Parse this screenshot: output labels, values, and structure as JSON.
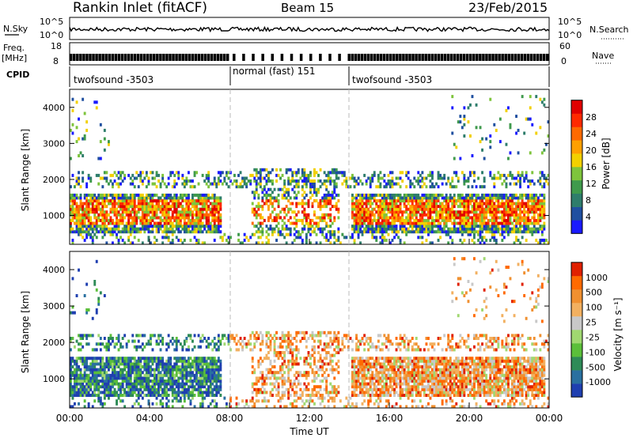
{
  "header": {
    "station": "Rankin Inlet (fitACF)",
    "beam": "Beam 15",
    "date": "23/Feb/2015"
  },
  "strips": {
    "nsky_label": "N.Sky",
    "nsky_ticks": [
      "10^5",
      "10^0"
    ],
    "nsearch_label": "N.Search",
    "nsearch_ticks": [
      "10^5",
      "10^0"
    ],
    "freq_label": "Freq.",
    "freq_unit": "[MHz]",
    "freq_ticks": [
      "18",
      "8"
    ],
    "nave_label": "Nave",
    "nave_ticks": [
      "60",
      "0"
    ],
    "cpid_label": "CPID",
    "cpid_segments": [
      {
        "label": "twofsound -3503",
        "start_hour": 0,
        "end_hour": 8
      },
      {
        "label": "normal (fast) 151",
        "start_hour": 8,
        "end_hour": 14
      },
      {
        "label": "twofsound -3503",
        "start_hour": 14,
        "end_hour": 24
      }
    ]
  },
  "chart_data": [
    {
      "type": "heatmap",
      "name": "power",
      "ylabel": "Slant Range [km]",
      "yticks": [
        "1000",
        "2000",
        "3000",
        "4000"
      ],
      "ylim": [
        200,
        4500
      ],
      "xlim": [
        0,
        24
      ],
      "colorbar_label": "Power [dB]",
      "colorbar_ticks": [
        "28",
        "24",
        "20",
        "16",
        "12",
        "8",
        "4"
      ],
      "colors": [
        "#1a1aff",
        "#1f4fa0",
        "#2e7d6b",
        "#3f9a4c",
        "#7ec43c",
        "#f2d000",
        "#ffa000",
        "#ff6a00",
        "#ff2a00",
        "#e00000"
      ]
    },
    {
      "type": "heatmap",
      "name": "velocity",
      "ylabel": "Slant Range [km]",
      "yticks": [
        "1000",
        "2000",
        "3000",
        "4000"
      ],
      "ylim": [
        200,
        4500
      ],
      "xlim": [
        0,
        24
      ],
      "xlabel": "Time UT",
      "xticks": [
        "00:00",
        "04:00",
        "08:00",
        "12:00",
        "16:00",
        "20:00",
        "00:00"
      ],
      "colorbar_label": "Velocity [m s⁻¹]",
      "colorbar_ticks": [
        "1000",
        "500",
        "100",
        "25",
        "-25",
        "-100",
        "-500",
        "-1000"
      ],
      "colors": [
        "#1f3fb0",
        "#2a70a0",
        "#2e8b57",
        "#5bbf3a",
        "#a0d870",
        "#c8c8c8",
        "#f2b060",
        "#f09030",
        "#ff6a00",
        "#e02000"
      ]
    }
  ]
}
